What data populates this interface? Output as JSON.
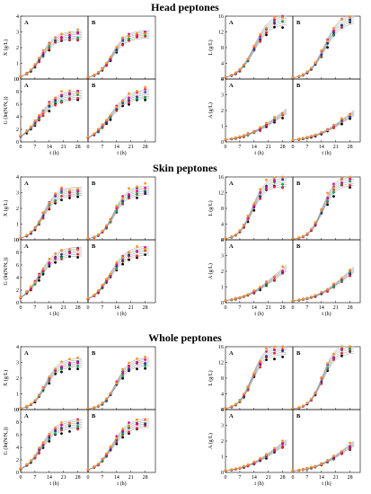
{
  "colors": {
    "series": [
      "#000000",
      "#e8222f",
      "#00a651",
      "#2e3192",
      "#ec008c",
      "#f7941d"
    ]
  },
  "chart_data": {
    "type": "scatter",
    "time_ticks": [
      "0",
      "7",
      "14",
      "21",
      "28"
    ],
    "x_label": "t (h)",
    "sections": [
      {
        "title": "Head peptones",
        "left_group": {
          "top": {
            "ylabel": "X (g/L)",
            "yticks": [
              "0",
              "1",
              "2",
              "3",
              "4"
            ],
            "ylim": [
              0,
              4
            ],
            "curve": {
              "K": 2.8,
              "r": 0.28,
              "t0": 10
            }
          },
          "bottom": {
            "ylabel": "G (ln(N/N₀))",
            "yticks": [
              "0",
              "2",
              "4",
              "6",
              "8",
              "10"
            ],
            "ylim": [
              0,
              10
            ],
            "curve": {
              "K": 7.6,
              "r": 0.22,
              "t0": 9
            }
          }
        },
        "right_group": {
          "top": {
            "ylabel": "L (g/L)",
            "yticks": [
              "0",
              "4",
              "8",
              "12",
              "16"
            ],
            "ylim": [
              0,
              16
            ],
            "curve": {
              "K": 15.5,
              "r": 0.25,
              "t0": 14
            }
          },
          "bottom": {
            "ylabel": "A (g/L)",
            "yticks": [
              "0",
              "1",
              "2",
              "3",
              "4"
            ],
            "ylim": [
              0,
              4
            ],
            "curve": {
              "K": 3.0,
              "r": 0.12,
              "t0": 25
            }
          }
        }
      },
      {
        "title": "Skin peptones",
        "left_group": {
          "top": {
            "ylabel": "X (g/L)",
            "yticks": [
              "0",
              "1",
              "2",
              "3",
              "4"
            ],
            "ylim": [
              0,
              4
            ],
            "curve": {
              "K": 3.1,
              "r": 0.3,
              "t0": 11
            }
          },
          "bottom": {
            "ylabel": "G (ln(N/N₀))",
            "yticks": [
              "0",
              "2",
              "4",
              "6",
              "8",
              "10"
            ],
            "ylim": [
              0,
              10
            ],
            "curve": {
              "K": 8.2,
              "r": 0.24,
              "t0": 9
            }
          }
        },
        "right_group": {
          "top": {
            "ylabel": "L (g/L)",
            "yticks": [
              "0",
              "4",
              "8",
              "12",
              "16"
            ],
            "ylim": [
              0,
              16
            ],
            "curve": {
              "K": 15.0,
              "r": 0.3,
              "t0": 13
            }
          },
          "bottom": {
            "ylabel": "A (g/L)",
            "yticks": [
              "0",
              "1",
              "2",
              "3",
              "4"
            ],
            "ylim": [
              0,
              4
            ],
            "curve": {
              "K": 3.2,
              "r": 0.13,
              "t0": 24
            }
          }
        }
      },
      {
        "title": "Whole peptones",
        "left_group": {
          "top": {
            "ylabel": "X (g/L)",
            "yticks": [
              "0",
              "1",
              "2",
              "3",
              "4"
            ],
            "ylim": [
              0,
              4
            ],
            "curve": {
              "K": 3.0,
              "r": 0.3,
              "t0": 12
            }
          },
          "bottom": {
            "ylabel": "G (ln(N/N₀))",
            "yticks": [
              "0",
              "2",
              "4",
              "6",
              "8",
              "10"
            ],
            "ylim": [
              0,
              10
            ],
            "curve": {
              "K": 7.8,
              "r": 0.25,
              "t0": 10
            }
          }
        },
        "right_group": {
          "top": {
            "ylabel": "L (g/L)",
            "yticks": [
              "0",
              "4",
              "8",
              "12",
              "16"
            ],
            "ylim": [
              0,
              16
            ],
            "curve": {
              "K": 15.5,
              "r": 0.3,
              "t0": 13
            }
          },
          "bottom": {
            "ylabel": "A (g/L)",
            "yticks": [
              "0",
              "1",
              "2",
              "3",
              "4"
            ],
            "ylim": [
              0,
              4
            ],
            "curve": {
              "K": 2.8,
              "r": 0.13,
              "t0": 24
            }
          }
        }
      }
    ],
    "panel_labels": [
      "A",
      "B"
    ]
  }
}
